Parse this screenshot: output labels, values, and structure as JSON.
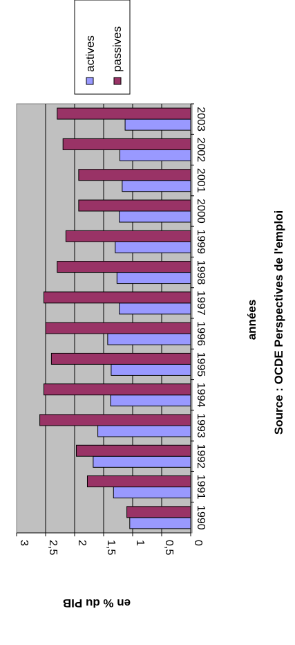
{
  "chart_data": {
    "type": "bar",
    "orientation": "rotated-90-clockwise",
    "categories": [
      "1990",
      "1991",
      "1992",
      "1993",
      "1994",
      "1995",
      "1996",
      "1997",
      "1998",
      "1999",
      "2000",
      "2001",
      "2002",
      "2003"
    ],
    "series": [
      {
        "name": "actives",
        "color": "#9999ff",
        "values": [
          1.05,
          1.33,
          1.68,
          1.6,
          1.38,
          1.37,
          1.43,
          1.23,
          1.27,
          1.3,
          1.23,
          1.18,
          1.22,
          1.13
        ]
      },
      {
        "name": "passives",
        "color": "#993366",
        "values": [
          1.1,
          1.78,
          1.97,
          2.6,
          2.53,
          2.4,
          2.5,
          2.53,
          2.3,
          2.15,
          1.93,
          1.93,
          2.2,
          2.3
        ]
      }
    ],
    "ylabel": "en % du PIB",
    "xlabel": "années",
    "source": "Source : OCDE Perspectives de l'emploi",
    "ytick_labels": [
      "0",
      "0,5",
      "1",
      "1,5",
      "2",
      "2,5",
      "3"
    ],
    "ylim": [
      0,
      3
    ],
    "grid": true,
    "plot_background": "#c0c0c0",
    "legend_position": "top-right"
  }
}
